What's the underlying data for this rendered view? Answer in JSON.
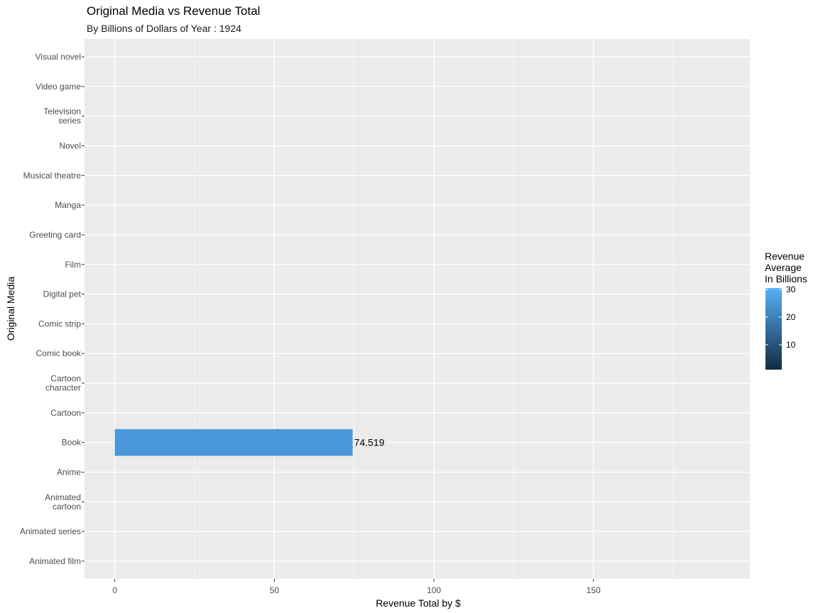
{
  "chart_data": {
    "type": "bar",
    "orientation": "horizontal",
    "title": "Original Media vs Revenue Total",
    "subtitle": "By Billions of Dollars of Year : 1924",
    "xlabel": "Revenue Total by $",
    "ylabel": "Original Media",
    "categories": [
      "Animated film",
      "Animated series",
      "Animated\ncartoon",
      "Anime",
      "Book",
      "Cartoon",
      "Cartoon\ncharacter",
      "Comic book",
      "Comic strip",
      "Digital pet",
      "Film",
      "Greeting card",
      "Manga",
      "Musical theatre",
      "Novel",
      "Television\nseries",
      "Video game",
      "Visual novel"
    ],
    "values": [
      null,
      null,
      null,
      null,
      74.519,
      null,
      null,
      null,
      null,
      null,
      null,
      null,
      null,
      null,
      null,
      null,
      null,
      null
    ],
    "data_labels": [
      "",
      "",
      "",
      "",
      "74.519",
      "",
      "",
      "",
      "",
      "",
      "",
      "",
      "",
      "",
      "",
      "",
      "",
      ""
    ],
    "fill_values": [
      null,
      null,
      null,
      null,
      30,
      null,
      null,
      null,
      null,
      null,
      null,
      null,
      null,
      null,
      null,
      null,
      null,
      null
    ],
    "xlim": [
      -9.5,
      199
    ],
    "xticks": [
      0,
      50,
      100,
      150
    ],
    "xtick_labels": [
      "0",
      "50",
      "100",
      "150"
    ],
    "grid": true,
    "legend": {
      "title": "Revenue\nAverage\nIn Billions",
      "placement": "right",
      "type": "colorbar",
      "range": [
        1,
        30.5
      ],
      "ticks": [
        10,
        20,
        30
      ],
      "tick_labels": [
        "10",
        "20",
        "30"
      ],
      "low_color": "#132b43",
      "high_color": "#56b1f7"
    },
    "bar_color": "#4a98d9",
    "panel_color": "#ebebeb",
    "grid_color": "#ffffff"
  }
}
